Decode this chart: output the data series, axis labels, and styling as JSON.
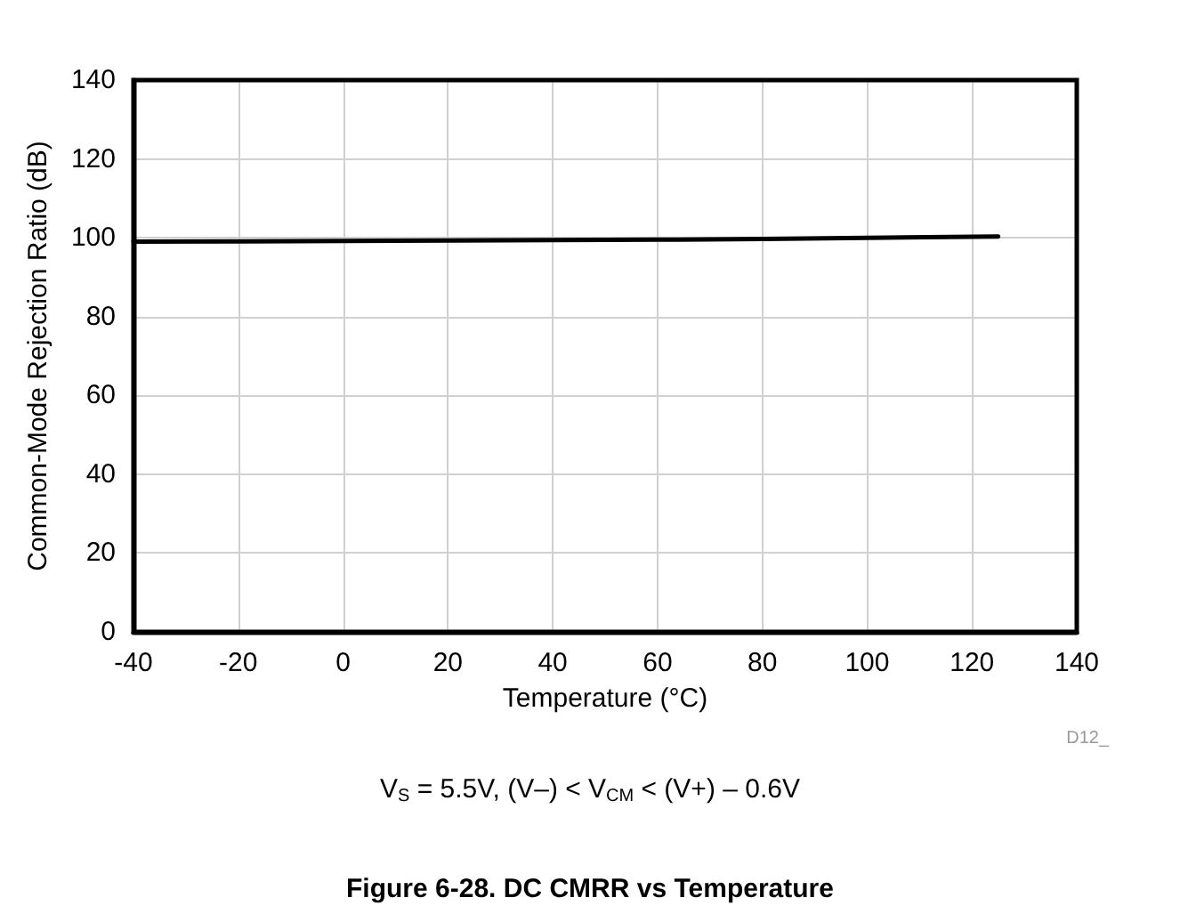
{
  "chart_data": {
    "type": "line",
    "title": "Figure 6-28. DC CMRR vs Temperature",
    "xlabel": "Temperature (°C)",
    "ylabel": "Common-Mode Rejection Ratio (dB)",
    "annotations": [
      "D12_",
      "V$_{S}$ = 5.5V, (V–) < V$_{CM}$ < (V+) – 0.6V"
    ],
    "x": [
      -40,
      -20,
      0,
      20,
      40,
      60,
      80,
      100,
      125
    ],
    "series": [
      {
        "color": "#000000",
        "values": [
          99.0,
          99.1,
          99.2,
          99.3,
          99.4,
          99.5,
          99.7,
          100.0,
          100.3
        ]
      }
    ],
    "xlim": [
      -40,
      140
    ],
    "xticks": [
      -40,
      -20,
      0,
      20,
      40,
      60,
      80,
      100,
      120,
      140
    ],
    "ylim": [
      0,
      140
    ],
    "yticks": [
      0,
      20,
      40,
      60,
      80,
      100,
      120,
      140
    ],
    "grid": true,
    "marker": "none",
    "line_style": "solid"
  }
}
